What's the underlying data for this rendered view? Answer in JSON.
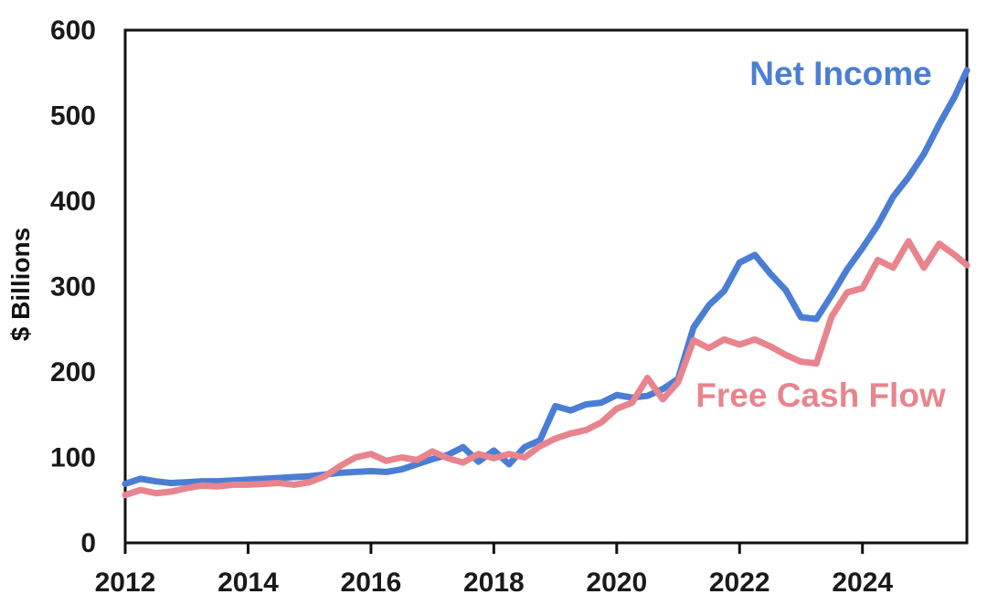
{
  "chart_data": {
    "type": "line",
    "title": "",
    "xlabel": "",
    "ylabel": "$ Billions",
    "grid": false,
    "legend": "inline-labels",
    "axis_color": "#111111",
    "tick_color": "#1a1a1a",
    "xlim": [
      2012,
      2025.7
    ],
    "ylim": [
      0,
      600
    ],
    "x_ticks": [
      2012,
      2014,
      2016,
      2018,
      2020,
      2022,
      2024
    ],
    "y_ticks": [
      0,
      100,
      200,
      300,
      400,
      500,
      600
    ],
    "x": [
      2012,
      2012.25,
      2012.5,
      2012.75,
      2013,
      2013.25,
      2013.5,
      2013.75,
      2014,
      2014.25,
      2014.5,
      2014.75,
      2015,
      2015.25,
      2015.5,
      2015.75,
      2016,
      2016.25,
      2016.5,
      2016.75,
      2017,
      2017.25,
      2017.5,
      2017.75,
      2018,
      2018.25,
      2018.5,
      2018.75,
      2019,
      2019.25,
      2019.5,
      2019.75,
      2020,
      2020.25,
      2020.5,
      2020.75,
      2021,
      2021.25,
      2021.5,
      2021.75,
      2022,
      2022.25,
      2022.5,
      2022.75,
      2023,
      2023.25,
      2023.5,
      2023.75,
      2024,
      2024.25,
      2024.5,
      2024.75,
      2025,
      2025.25,
      2025.5,
      2025.7
    ],
    "series": [
      {
        "name": "Net Income",
        "color": "#4a7ed4",
        "values": [
          69,
          75,
          72,
          70,
          71,
          72,
          72,
          73,
          74,
          75,
          76,
          77,
          78,
          80,
          82,
          83,
          84,
          83,
          86,
          92,
          98,
          103,
          112,
          95,
          108,
          92,
          112,
          120,
          160,
          155,
          162,
          164,
          173,
          170,
          172,
          180,
          192,
          252,
          278,
          295,
          328,
          337,
          315,
          296,
          264,
          262,
          290,
          320,
          345,
          372,
          405,
          428,
          455,
          490,
          522,
          553
        ]
      },
      {
        "name": "Free Cash Flow",
        "color": "#e8848d",
        "values": [
          56,
          62,
          58,
          60,
          64,
          67,
          66,
          68,
          68,
          69,
          70,
          68,
          71,
          78,
          90,
          100,
          104,
          96,
          100,
          97,
          107,
          99,
          94,
          104,
          99,
          104,
          100,
          113,
          122,
          128,
          132,
          141,
          157,
          164,
          193,
          168,
          188,
          237,
          228,
          238,
          232,
          238,
          230,
          220,
          212,
          210,
          265,
          293,
          298,
          331,
          322,
          353,
          322,
          350,
          337,
          325
        ]
      }
    ]
  }
}
